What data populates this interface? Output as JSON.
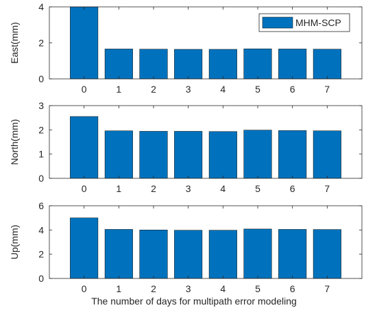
{
  "figure": {
    "xlabel": "The number of days for multipath error modeling"
  },
  "chart_data": [
    {
      "type": "bar",
      "categories": [
        "0",
        "1",
        "2",
        "3",
        "4",
        "5",
        "6",
        "7"
      ],
      "series": [
        {
          "name": "MHM-SCP",
          "values": [
            4.0,
            1.66,
            1.65,
            1.64,
            1.64,
            1.67,
            1.66,
            1.65
          ]
        }
      ],
      "ylabel": "East(mm)",
      "xlabel": "",
      "ylim": [
        0,
        4
      ],
      "yticks": [
        0,
        2,
        4
      ],
      "legend": "top-right",
      "grid": false
    },
    {
      "type": "bar",
      "categories": [
        "0",
        "1",
        "2",
        "3",
        "4",
        "5",
        "6",
        "7"
      ],
      "series": [
        {
          "values": [
            2.55,
            1.96,
            1.94,
            1.94,
            1.93,
            1.99,
            1.97,
            1.96
          ]
        }
      ],
      "ylabel": "North(mm)",
      "xlabel": "",
      "ylim": [
        0,
        3
      ],
      "yticks": [
        0,
        1,
        2,
        3
      ],
      "grid": false
    },
    {
      "type": "bar",
      "categories": [
        "0",
        "1",
        "2",
        "3",
        "4",
        "5",
        "6",
        "7"
      ],
      "series": [
        {
          "values": [
            5.0,
            4.05,
            4.0,
            3.98,
            3.98,
            4.08,
            4.05,
            4.04
          ]
        }
      ],
      "ylabel": "Up(mm)",
      "xlabel": "The number of days for multipath error modeling",
      "ylim": [
        0,
        6
      ],
      "yticks": [
        0,
        2,
        4,
        6
      ],
      "grid": false
    }
  ],
  "colors": {
    "bar": "#0072BD",
    "bar_edge": "#000000",
    "axis": "#262626"
  }
}
